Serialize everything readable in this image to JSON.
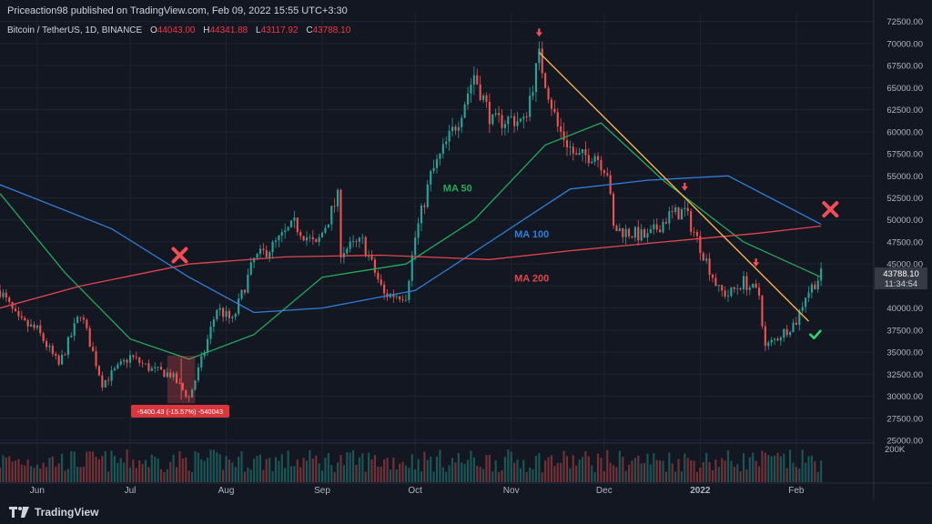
{
  "header": {
    "publisher": "Priceaction98 published on TradingView.com, Feb 09, 2022 15:55 UTC+3:30",
    "symbol": "Bitcoin / TetherUS, 1D, BINANCE",
    "o_label": "O",
    "o_value": "44043.00",
    "h_label": "H",
    "h_value": "44341.88",
    "l_label": "L",
    "l_value": "43117.92",
    "c_label": "C",
    "c_value": "43788.10"
  },
  "footer": {
    "brand": "TradingView"
  },
  "colors": {
    "background": "#131722",
    "grid": "#1f2330",
    "up": "#26a69a",
    "down": "#ef5350",
    "ma50": "#22ab5b",
    "ma100": "#2f7fd8",
    "ma200": "#e0464c",
    "trendline": "#f7b24a",
    "cross": "#f44d55",
    "check": "#2ed573",
    "price_label": "#363a45",
    "text": "#b2b5be"
  },
  "chart_data": {
    "type": "candlestick",
    "title": "",
    "y_ticks": [
      "72500.00",
      "70000.00",
      "67500.00",
      "65000.00",
      "62500.00",
      "60000.00",
      "57500.00",
      "55000.00",
      "52500.00",
      "50000.00",
      "47500.00",
      "45000.00",
      "42500.00",
      "40000.00",
      "37500.00",
      "35000.00",
      "32500.00",
      "30000.00",
      "27500.00",
      "25000.00"
    ],
    "ylim": [
      25000,
      73500
    ],
    "x_labels": [
      {
        "text": "Jun",
        "x": "2021-06-01"
      },
      {
        "text": "Jul",
        "x": "2021-07-01"
      },
      {
        "text": "Aug",
        "x": "2021-08-01"
      },
      {
        "text": "Sep",
        "x": "2021-09-01"
      },
      {
        "text": "Oct",
        "x": "2021-10-01"
      },
      {
        "text": "Nov",
        "x": "2021-11-01"
      },
      {
        "text": "Dec",
        "x": "2021-12-01"
      },
      {
        "text": "2022",
        "x": "2022-01-01"
      },
      {
        "text": "Feb",
        "x": "2022-02-01"
      }
    ],
    "xlim": [
      "2021-05-20",
      "2022-02-26"
    ],
    "price_path": [
      [
        "2021-05-20",
        42000
      ],
      [
        "2021-05-26",
        38500
      ],
      [
        "2021-06-01",
        37500
      ],
      [
        "2021-06-08",
        33500
      ],
      [
        "2021-06-15",
        39500
      ],
      [
        "2021-06-22",
        31500
      ],
      [
        "2021-07-01",
        34500
      ],
      [
        "2021-07-08",
        33000
      ],
      [
        "2021-07-14",
        32500
      ],
      [
        "2021-07-20",
        29800
      ],
      [
        "2021-07-24",
        34000
      ],
      [
        "2021-07-29",
        40000
      ],
      [
        "2021-08-03",
        38500
      ],
      [
        "2021-08-10",
        45500
      ],
      [
        "2021-08-16",
        47000
      ],
      [
        "2021-08-23",
        49500
      ],
      [
        "2021-08-30",
        47000
      ],
      [
        "2021-09-06",
        52500
      ],
      [
        "2021-09-07",
        46500
      ],
      [
        "2021-09-14",
        47500
      ],
      [
        "2021-09-21",
        41500
      ],
      [
        "2021-09-28",
        41500
      ],
      [
        "2021-10-01",
        48000
      ],
      [
        "2021-10-06",
        55000
      ],
      [
        "2021-10-15",
        61500
      ],
      [
        "2021-10-20",
        66500
      ],
      [
        "2021-10-26",
        61000
      ],
      [
        "2021-11-01",
        61500
      ],
      [
        "2021-11-05",
        61000
      ],
      [
        "2021-11-10",
        68500
      ],
      [
        "2021-11-16",
        60500
      ],
      [
        "2021-11-22",
        57000
      ],
      [
        "2021-11-28",
        57500
      ],
      [
        "2021-12-02",
        55500
      ],
      [
        "2021-12-04",
        49000
      ],
      [
        "2021-12-10",
        48500
      ],
      [
        "2021-12-15",
        48000
      ],
      [
        "2021-12-22",
        50500
      ],
      [
        "2021-12-27",
        51000
      ],
      [
        "2022-01-01",
        47000
      ],
      [
        "2022-01-07",
        42000
      ],
      [
        "2022-01-10",
        41500
      ],
      [
        "2022-01-15",
        43000
      ],
      [
        "2022-01-20",
        41500
      ],
      [
        "2022-01-22",
        35500
      ],
      [
        "2022-01-27",
        37000
      ],
      [
        "2022-02-01",
        38500
      ],
      [
        "2022-02-04",
        41500
      ],
      [
        "2022-02-09",
        43788
      ]
    ],
    "series": [
      {
        "name": "MA 50",
        "points": [
          [
            "2021-05-20",
            53000
          ],
          [
            "2021-06-10",
            44000
          ],
          [
            "2021-07-01",
            36500
          ],
          [
            "2021-07-20",
            34200
          ],
          [
            "2021-08-10",
            37000
          ],
          [
            "2021-09-01",
            43500
          ],
          [
            "2021-09-28",
            45000
          ],
          [
            "2021-10-20",
            50000
          ],
          [
            "2021-11-12",
            58500
          ],
          [
            "2021-11-30",
            61000
          ],
          [
            "2021-12-20",
            54500
          ],
          [
            "2022-01-15",
            47500
          ],
          [
            "2022-02-09",
            43500
          ]
        ]
      },
      {
        "name": "MA 100",
        "points": [
          [
            "2021-05-20",
            54000
          ],
          [
            "2021-06-25",
            49000
          ],
          [
            "2021-07-20",
            43500
          ],
          [
            "2021-08-10",
            39500
          ],
          [
            "2021-09-01",
            40000
          ],
          [
            "2021-10-01",
            42000
          ],
          [
            "2021-10-25",
            47500
          ],
          [
            "2021-11-20",
            53500
          ],
          [
            "2021-12-15",
            54500
          ],
          [
            "2022-01-10",
            55000
          ],
          [
            "2022-02-09",
            49500
          ]
        ]
      },
      {
        "name": "MA 200",
        "points": [
          [
            "2021-05-20",
            40000
          ],
          [
            "2021-06-15",
            42500
          ],
          [
            "2021-07-20",
            45000
          ],
          [
            "2021-08-20",
            45800
          ],
          [
            "2021-09-20",
            46000
          ],
          [
            "2021-10-25",
            45500
          ],
          [
            "2021-11-20",
            46500
          ],
          [
            "2021-12-20",
            47500
          ],
          [
            "2022-01-20",
            48500
          ],
          [
            "2022-02-09",
            49300
          ]
        ]
      }
    ],
    "trendline": [
      [
        "2021-11-10",
        69000
      ],
      [
        "2022-02-05",
        38500
      ]
    ],
    "annotations": {
      "ma50_label": "MA 50",
      "ma100_label": "MA 100",
      "ma200_label": "MA 200",
      "measure_text": "-5400.43 (-15.57%) -540043",
      "price_label": "43788.10",
      "countdown_label": "11:34:54",
      "volume_tick": "200K"
    },
    "markers": [
      {
        "kind": "arrow-down",
        "x": "2021-11-10",
        "y": 71300
      },
      {
        "kind": "arrow-down",
        "x": "2021-12-27",
        "y": 53800
      },
      {
        "kind": "arrow-down",
        "x": "2022-01-19",
        "y": 45200
      },
      {
        "kind": "cross",
        "x": "2021-07-17",
        "y": 46000
      },
      {
        "kind": "cross",
        "x": "2022-02-12",
        "y": 51200
      },
      {
        "kind": "check",
        "x": "2022-02-07",
        "y": 37000
      }
    ],
    "grid": true,
    "legend": "none"
  }
}
